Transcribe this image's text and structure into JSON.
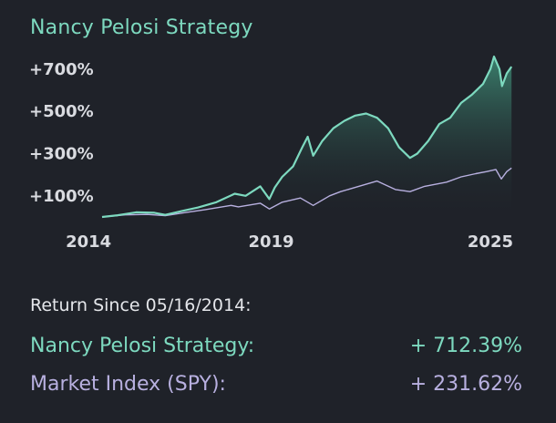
{
  "header": {
    "title": "Nancy Pelosi Strategy"
  },
  "summary": {
    "since_label": "Return Since 05/16/2014:",
    "rows": [
      {
        "label": "Nancy Pelosi Strategy:",
        "value": "+ 712.39%"
      },
      {
        "label": "Market Index (SPY):",
        "value": "+ 231.62%"
      }
    ]
  },
  "colors": {
    "strategy": "#7dd9bf",
    "index": "#b8b0e0",
    "background": "#1f2229",
    "tick_text": "#d9dbe0"
  },
  "chart_data": {
    "type": "area",
    "title": "Nancy Pelosi Strategy",
    "x_ticks": [
      "2014",
      "2019",
      "2025"
    ],
    "y_ticks": [
      "+100%",
      "+300%",
      "+500%",
      "+700%"
    ],
    "xlim": [
      2014.37,
      2025.6
    ],
    "ylim": [
      0,
      760
    ],
    "grid": false,
    "series": [
      {
        "name": "Nancy Pelosi Strategy",
        "points": [
          [
            2014.37,
            0
          ],
          [
            2014.8,
            8
          ],
          [
            2015.3,
            22
          ],
          [
            2015.8,
            20
          ],
          [
            2016.1,
            10
          ],
          [
            2016.6,
            30
          ],
          [
            2017.0,
            45
          ],
          [
            2017.5,
            70
          ],
          [
            2018.0,
            110
          ],
          [
            2018.3,
            100
          ],
          [
            2018.7,
            145
          ],
          [
            2018.95,
            85
          ],
          [
            2019.1,
            140
          ],
          [
            2019.3,
            190
          ],
          [
            2019.6,
            240
          ],
          [
            2019.85,
            330
          ],
          [
            2020.0,
            380
          ],
          [
            2020.15,
            290
          ],
          [
            2020.4,
            360
          ],
          [
            2020.7,
            420
          ],
          [
            2021.0,
            455
          ],
          [
            2021.3,
            480
          ],
          [
            2021.6,
            490
          ],
          [
            2021.9,
            470
          ],
          [
            2022.2,
            420
          ],
          [
            2022.5,
            330
          ],
          [
            2022.8,
            280
          ],
          [
            2023.0,
            300
          ],
          [
            2023.3,
            360
          ],
          [
            2023.6,
            440
          ],
          [
            2023.9,
            470
          ],
          [
            2024.2,
            540
          ],
          [
            2024.5,
            580
          ],
          [
            2024.8,
            630
          ],
          [
            2025.0,
            700
          ],
          [
            2025.1,
            760
          ],
          [
            2025.25,
            700
          ],
          [
            2025.32,
            620
          ],
          [
            2025.45,
            680
          ],
          [
            2025.58,
            712
          ]
        ]
      },
      {
        "name": "Market Index (SPY)",
        "points": [
          [
            2014.37,
            0
          ],
          [
            2015.0,
            10
          ],
          [
            2015.6,
            12
          ],
          [
            2016.1,
            6
          ],
          [
            2016.6,
            20
          ],
          [
            2017.2,
            35
          ],
          [
            2017.9,
            55
          ],
          [
            2018.1,
            48
          ],
          [
            2018.7,
            65
          ],
          [
            2018.95,
            38
          ],
          [
            2019.3,
            70
          ],
          [
            2019.8,
            90
          ],
          [
            2020.15,
            55
          ],
          [
            2020.6,
            100
          ],
          [
            2020.9,
            120
          ],
          [
            2021.3,
            140
          ],
          [
            2021.9,
            170
          ],
          [
            2022.4,
            130
          ],
          [
            2022.8,
            120
          ],
          [
            2023.2,
            145
          ],
          [
            2023.8,
            165
          ],
          [
            2024.2,
            190
          ],
          [
            2024.6,
            205
          ],
          [
            2024.9,
            215
          ],
          [
            2025.15,
            225
          ],
          [
            2025.3,
            180
          ],
          [
            2025.45,
            215
          ],
          [
            2025.58,
            232
          ]
        ]
      }
    ]
  }
}
